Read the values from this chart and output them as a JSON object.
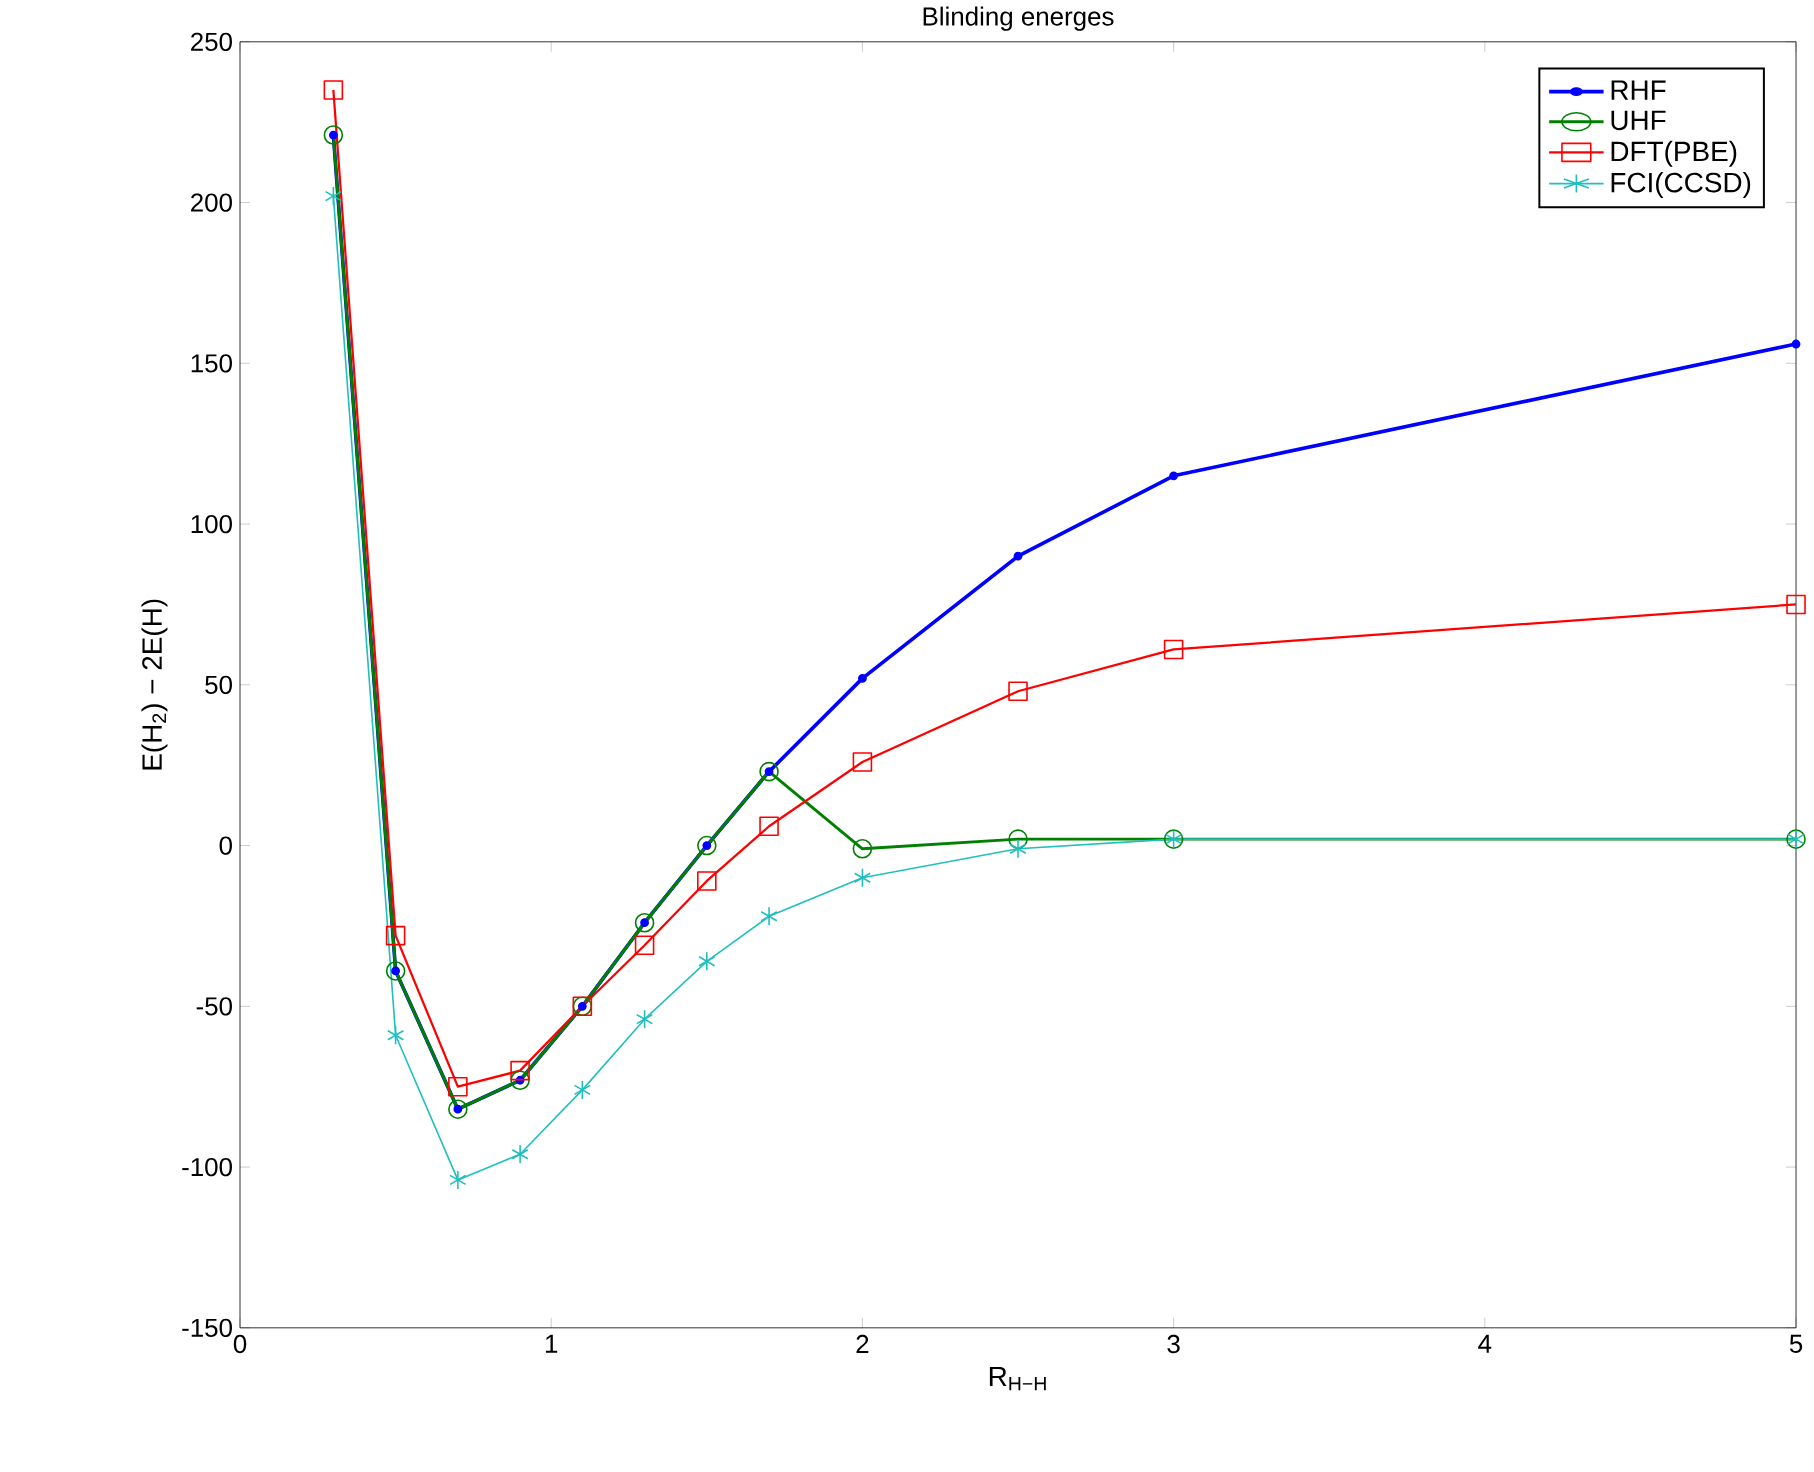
{
  "chart_data": {
    "type": "line",
    "title": "Blinding energes",
    "xlabel": "R$_{H−H}$",
    "ylabel": "E(H$_{2}$) − 2E(H)",
    "x": [
      0.3,
      0.5,
      0.7,
      0.9,
      1.1,
      1.3,
      1.5,
      1.7,
      2,
      2.5,
      3,
      5
    ],
    "series": [
      {
        "name": "RHF",
        "color": "#0000ff",
        "marker": "circle",
        "values": [
          221,
          -39,
          -82,
          -73,
          -50,
          -24,
          0,
          23,
          52,
          90,
          115,
          156
        ]
      },
      {
        "name": "UHF",
        "color": "#008000",
        "marker": "circle",
        "values": [
          221,
          -39,
          -82,
          -73,
          -50,
          -24,
          0,
          23,
          -1,
          2,
          2,
          2
        ]
      },
      {
        "name": "DFT(PBE)",
        "color": "#ff0000",
        "marker": "square",
        "values": [
          235,
          -28,
          -75,
          -70,
          -50,
          -31,
          -11,
          6,
          26,
          48,
          61,
          75
        ]
      },
      {
        "name": "FCI(CCSD)",
        "color": "#1fbfbf",
        "marker": "cross",
        "values": [
          202,
          -59,
          -104,
          -96,
          -76,
          -54,
          -36,
          -22,
          -10,
          -1,
          2,
          2
        ]
      }
    ],
    "xlim": [
      0,
      5
    ],
    "ylim": [
      -150,
      250
    ],
    "xticks": [
      0,
      1,
      2,
      3,
      4,
      5
    ],
    "yticks": [
      -150,
      -100,
      -50,
      0,
      50,
      100,
      150,
      200,
      250
    ],
    "grid": false,
    "legend": "top right",
    "line_style": "solid"
  }
}
